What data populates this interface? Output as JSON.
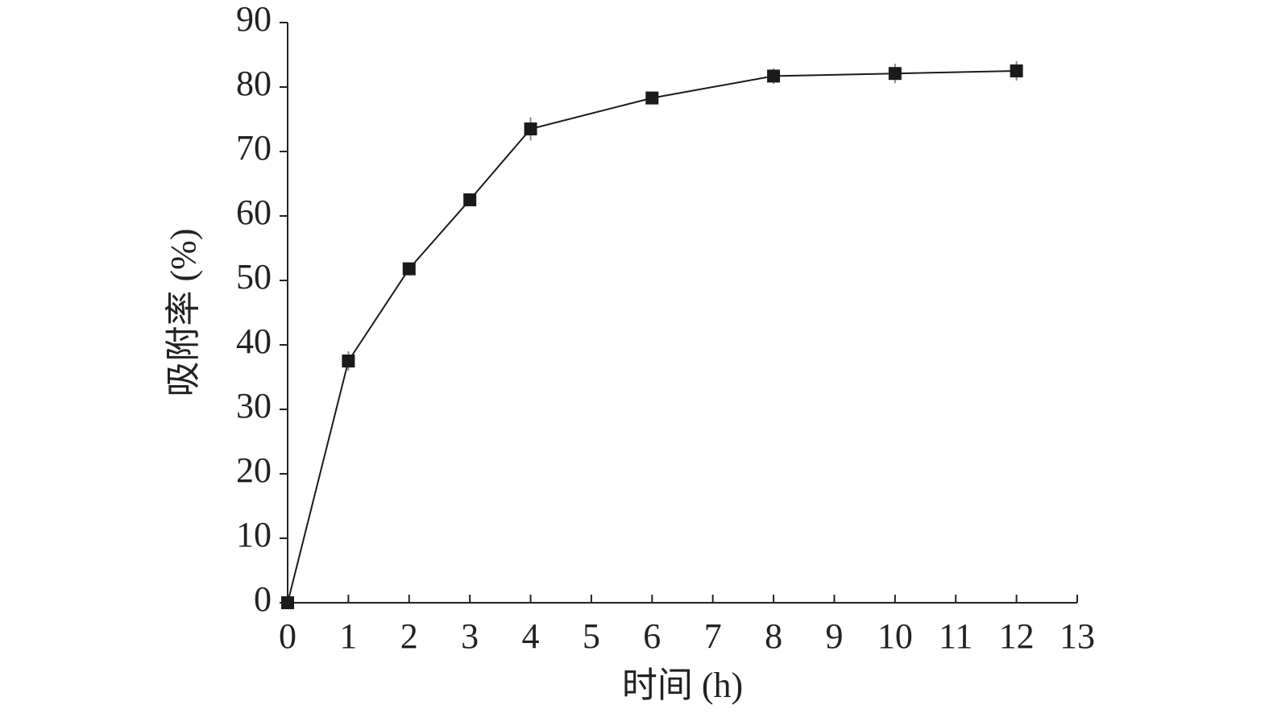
{
  "chart_data": {
    "type": "line",
    "x_label": "时间 (h)",
    "y_label": "吸附率 (%)",
    "x": [
      0,
      1,
      2,
      3,
      4,
      6,
      8,
      10,
      12
    ],
    "values": [
      0,
      37.5,
      51.8,
      62.5,
      73.5,
      78.3,
      81.7,
      82.1,
      82.5
    ],
    "errors": [
      0,
      1.5,
      1.0,
      1.0,
      1.8,
      1.0,
      1.2,
      1.5,
      1.5
    ],
    "color": "#1a1a1a",
    "xlim": [
      0,
      13
    ],
    "xticks": [
      0,
      1,
      2,
      3,
      4,
      5,
      6,
      7,
      8,
      9,
      10,
      11,
      12,
      13
    ],
    "ylim": [
      0,
      90
    ],
    "yticks": [
      0,
      10,
      20,
      30,
      40,
      50,
      60,
      70,
      80,
      90
    ],
    "grid": false
  }
}
